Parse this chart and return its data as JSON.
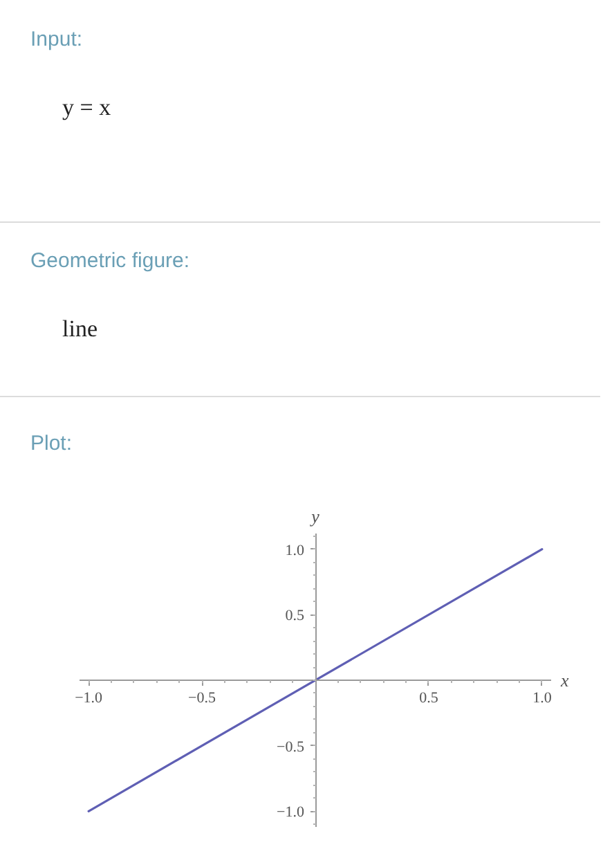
{
  "chart_data": {
    "type": "line",
    "title": "Plot:",
    "annotations": [
      "Input:",
      "y = x",
      "Geometric figure:",
      "line"
    ],
    "xlabel": "x",
    "ylabel": "y",
    "x": [
      -1,
      1
    ],
    "series": [
      {
        "color": "#5f5fb4",
        "values": [
          -1,
          1
        ]
      }
    ],
    "xlim": [
      -1.04,
      1.04
    ],
    "ylim": [
      -1.12,
      1.12
    ],
    "xticks": [
      {
        "value": -1,
        "label": "−1.0"
      },
      {
        "value": -0.5,
        "label": "−0.5"
      },
      {
        "value": 0.5,
        "label": "0.5"
      },
      {
        "value": 1,
        "label": "1.0"
      }
    ],
    "yticks": [
      {
        "value": -1,
        "label": "−1.0"
      },
      {
        "value": -0.5,
        "label": "−0.5"
      },
      {
        "value": 0.5,
        "label": "0.5"
      },
      {
        "value": 1,
        "label": "1.0"
      }
    ],
    "grid": false
  }
}
